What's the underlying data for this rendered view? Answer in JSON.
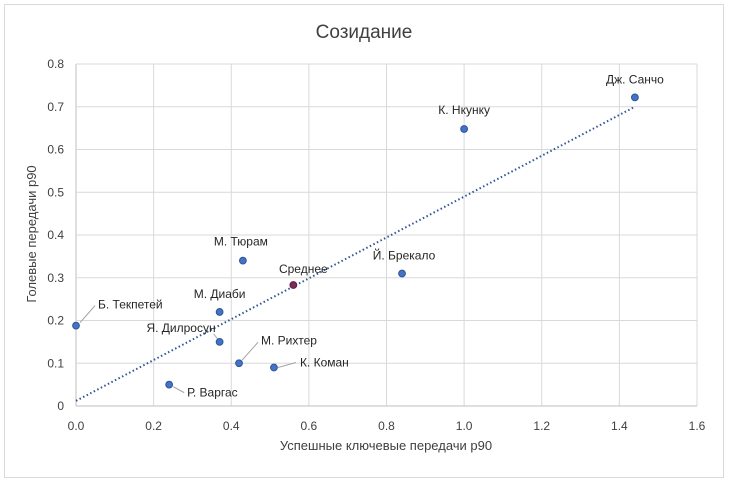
{
  "chart_data": {
    "type": "scatter",
    "title": "Созидание",
    "xlabel": "Успешные ключевые передачи р90",
    "ylabel": "Голевые передачи р90",
    "xlim": [
      0,
      1.6
    ],
    "ylim": [
      0,
      0.8
    ],
    "x_ticks": [
      "0.0",
      "0.2",
      "0.4",
      "0.6",
      "0.8",
      "1.0",
      "1.2",
      "1.4",
      "1.6"
    ],
    "y_ticks": [
      "0",
      "0.1",
      "0.2",
      "0.3",
      "0.4",
      "0.5",
      "0.6",
      "0.7",
      "0.8"
    ],
    "grid": "vertical and horizontal",
    "legend": "none",
    "trendline": {
      "type": "linear",
      "style": "dotted",
      "color": "#2f5597",
      "from": [
        0,
        0.012
      ],
      "to": [
        1.44,
        0.7
      ]
    },
    "colors": {
      "point": "#4472c4",
      "point_edge": "#2f5597",
      "highlight": "#7b2c5a",
      "highlight_edge": "#5a1f42"
    },
    "points": [
      {
        "label": "Дж. Санчо",
        "x": 1.44,
        "y": 0.722,
        "highlight": false
      },
      {
        "label": "К. Нкунку",
        "x": 1.0,
        "y": 0.648,
        "highlight": false
      },
      {
        "label": "Й. Брекало",
        "x": 0.84,
        "y": 0.31,
        "highlight": false
      },
      {
        "label": "М. Тюрам",
        "x": 0.43,
        "y": 0.34,
        "highlight": false
      },
      {
        "label": "Среднее",
        "x": 0.56,
        "y": 0.283,
        "highlight": true
      },
      {
        "label": "М. Диаби",
        "x": 0.37,
        "y": 0.22,
        "highlight": false
      },
      {
        "label": "Б. Текпетей",
        "x": 0.0,
        "y": 0.188,
        "highlight": false
      },
      {
        "label": "Я. Дилросун",
        "x": 0.37,
        "y": 0.15,
        "highlight": false
      },
      {
        "label": "М. Рихтер",
        "x": 0.42,
        "y": 0.1,
        "highlight": false
      },
      {
        "label": "К. Коман",
        "x": 0.51,
        "y": 0.09,
        "highlight": false
      },
      {
        "label": "Р. Варгас",
        "x": 0.24,
        "y": 0.05,
        "highlight": false
      }
    ]
  }
}
